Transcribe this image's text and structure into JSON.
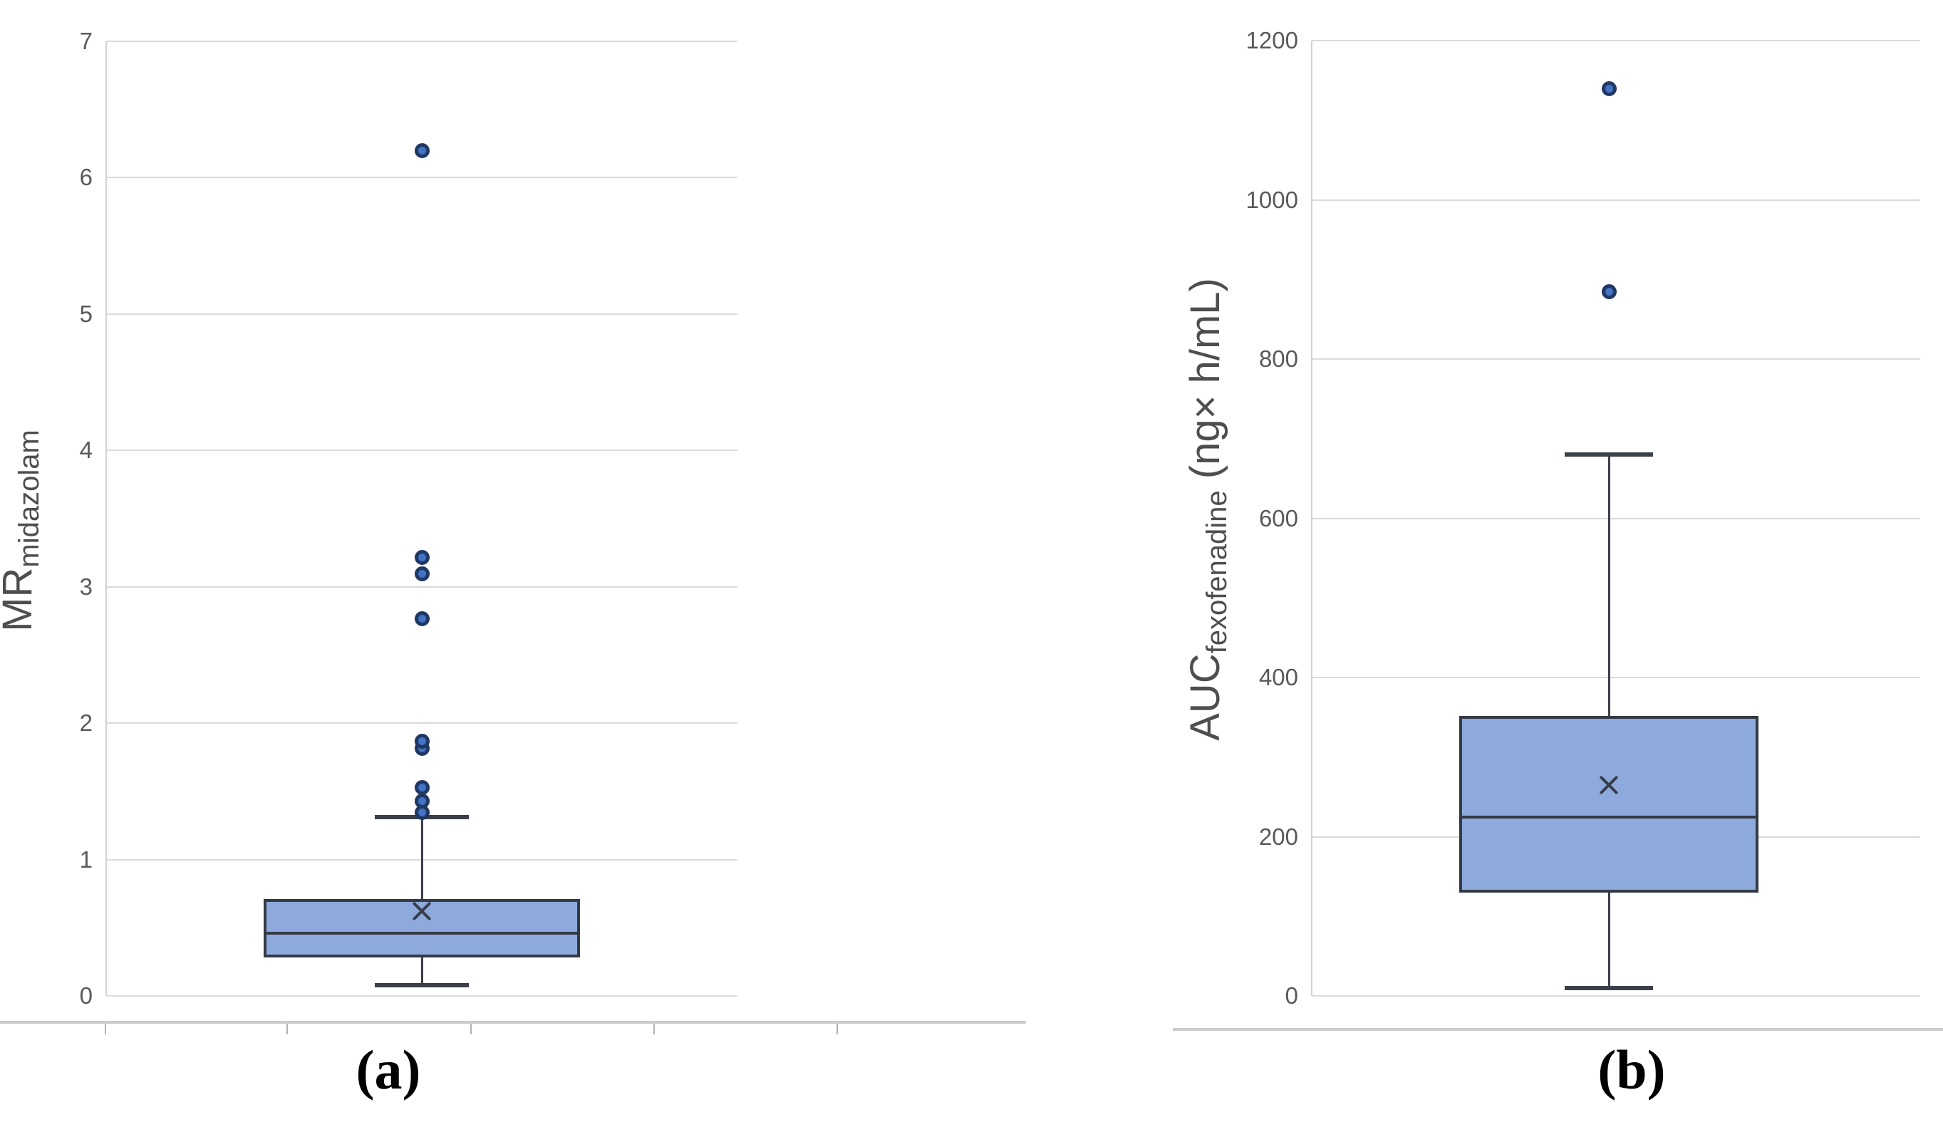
{
  "figure": {
    "background": "#ffffff",
    "panel_count": 2
  },
  "colors": {
    "box_fill": "#8EA9DB",
    "box_stroke": "#343A45",
    "median_line": "#343A45",
    "mean_marker": "#363C49",
    "outlier_ring": "#1F3864",
    "outlier_fill": "#4472C4",
    "gridline": "#DADADA",
    "bottom_axis_line": "#CBCBCB",
    "tick_label": "#595959",
    "axis_title": "#4E4E4E",
    "panel_label": "#000000"
  },
  "chart_data": [
    {
      "type": "boxplot",
      "panel": "a",
      "label": "(a)",
      "y_axis": {
        "title_main": "MR",
        "title_sub": "midazolam",
        "title_suffix": "",
        "ticks": [
          0,
          1,
          2,
          3,
          4,
          5,
          6,
          7
        ],
        "range": [
          0,
          7
        ],
        "gridlines": true
      },
      "x_axis": {
        "ticks_visible": true,
        "labels": []
      },
      "series_name": "MR midazolam",
      "stats": {
        "whisker_low": 0.08,
        "q1": 0.28,
        "median": 0.46,
        "mean": 0.62,
        "q3": 0.71,
        "whisker_high": 1.31
      },
      "outliers": [
        1.35,
        1.43,
        1.53,
        1.82,
        1.87,
        2.77,
        3.1,
        3.22,
        6.2
      ],
      "mean_marker": "x-cross",
      "legend": "none"
    },
    {
      "type": "boxplot",
      "panel": "b",
      "label": "(b)",
      "y_axis": {
        "title_main": "AUC",
        "title_sub": "fexofenadine",
        "title_suffix": " (ng× h/mL)",
        "ticks": [
          0,
          200,
          400,
          600,
          800,
          1000,
          1200
        ],
        "range": [
          0,
          1200
        ],
        "gridlines": true
      },
      "x_axis": {
        "ticks_visible": false,
        "labels": []
      },
      "series_name": "AUC fexofenadine",
      "stats": {
        "whisker_low": 10,
        "q1": 130,
        "median": 225,
        "mean": 265,
        "q3": 352,
        "whisker_high": 680
      },
      "outliers": [
        885,
        1140
      ],
      "mean_marker": "x-cross",
      "legend": "none"
    }
  ]
}
